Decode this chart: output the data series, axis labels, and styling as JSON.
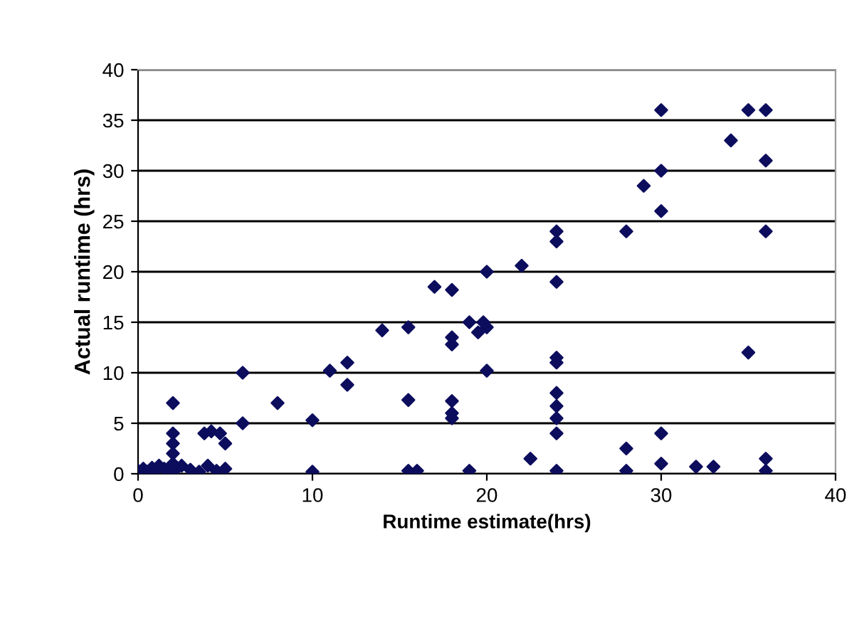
{
  "chart_data": {
    "type": "scatter",
    "xlabel": "Runtime estimate(hrs)",
    "ylabel": "Actual runtime (hrs)",
    "xlim": [
      0,
      40
    ],
    "ylim": [
      0,
      40
    ],
    "xticks": [
      0,
      10,
      20,
      30,
      40
    ],
    "yticks": [
      0,
      5,
      10,
      15,
      20,
      25,
      30,
      35,
      40
    ],
    "grid": "y",
    "marker": "diamond",
    "legend": false,
    "series": [
      {
        "color": "#0d0d5e",
        "x": [
          0,
          0.3,
          0.5,
          0.8,
          1,
          1.2,
          1.5,
          1.8,
          2,
          2,
          2,
          2,
          2,
          2.2,
          2.5,
          3,
          3.5,
          3.8,
          4,
          4.2,
          4.5,
          4.7,
          5,
          5,
          6,
          6,
          8,
          10,
          10,
          11,
          12,
          12,
          14,
          15.5,
          15.5,
          15.5,
          16,
          17,
          18,
          18,
          18,
          18,
          18,
          18,
          19,
          19,
          19.5,
          19.8,
          20,
          20,
          20,
          22,
          22.5,
          24,
          24,
          24,
          24,
          24,
          24,
          24,
          24,
          24,
          24,
          28,
          28,
          28,
          29,
          30,
          30,
          30,
          30,
          30,
          32,
          33,
          34,
          35,
          35,
          36,
          36,
          36,
          36,
          36
        ],
        "values": [
          0.3,
          0.5,
          0.2,
          0.6,
          0.3,
          0.8,
          0.5,
          0.3,
          1,
          2,
          3,
          4,
          7,
          0.5,
          0.8,
          0.4,
          0.2,
          4,
          0.8,
          4.2,
          0.3,
          4,
          3,
          0.5,
          5,
          10,
          7,
          5.3,
          0.2,
          10.2,
          11,
          8.8,
          14.2,
          14.5,
          7.3,
          0.3,
          0.3,
          18.5,
          18.2,
          13.5,
          12.8,
          7.2,
          6,
          5.5,
          15,
          0.3,
          14,
          15,
          20,
          14.5,
          10.2,
          20.6,
          1.5,
          24,
          23,
          19,
          11.5,
          11,
          8,
          6.7,
          5.5,
          4,
          0.3,
          24,
          2.5,
          0.3,
          28.5,
          36,
          30,
          26,
          4,
          1,
          0.7,
          0.7,
          33,
          36,
          12,
          36,
          31,
          24,
          1.5,
          0.3
        ]
      }
    ]
  }
}
